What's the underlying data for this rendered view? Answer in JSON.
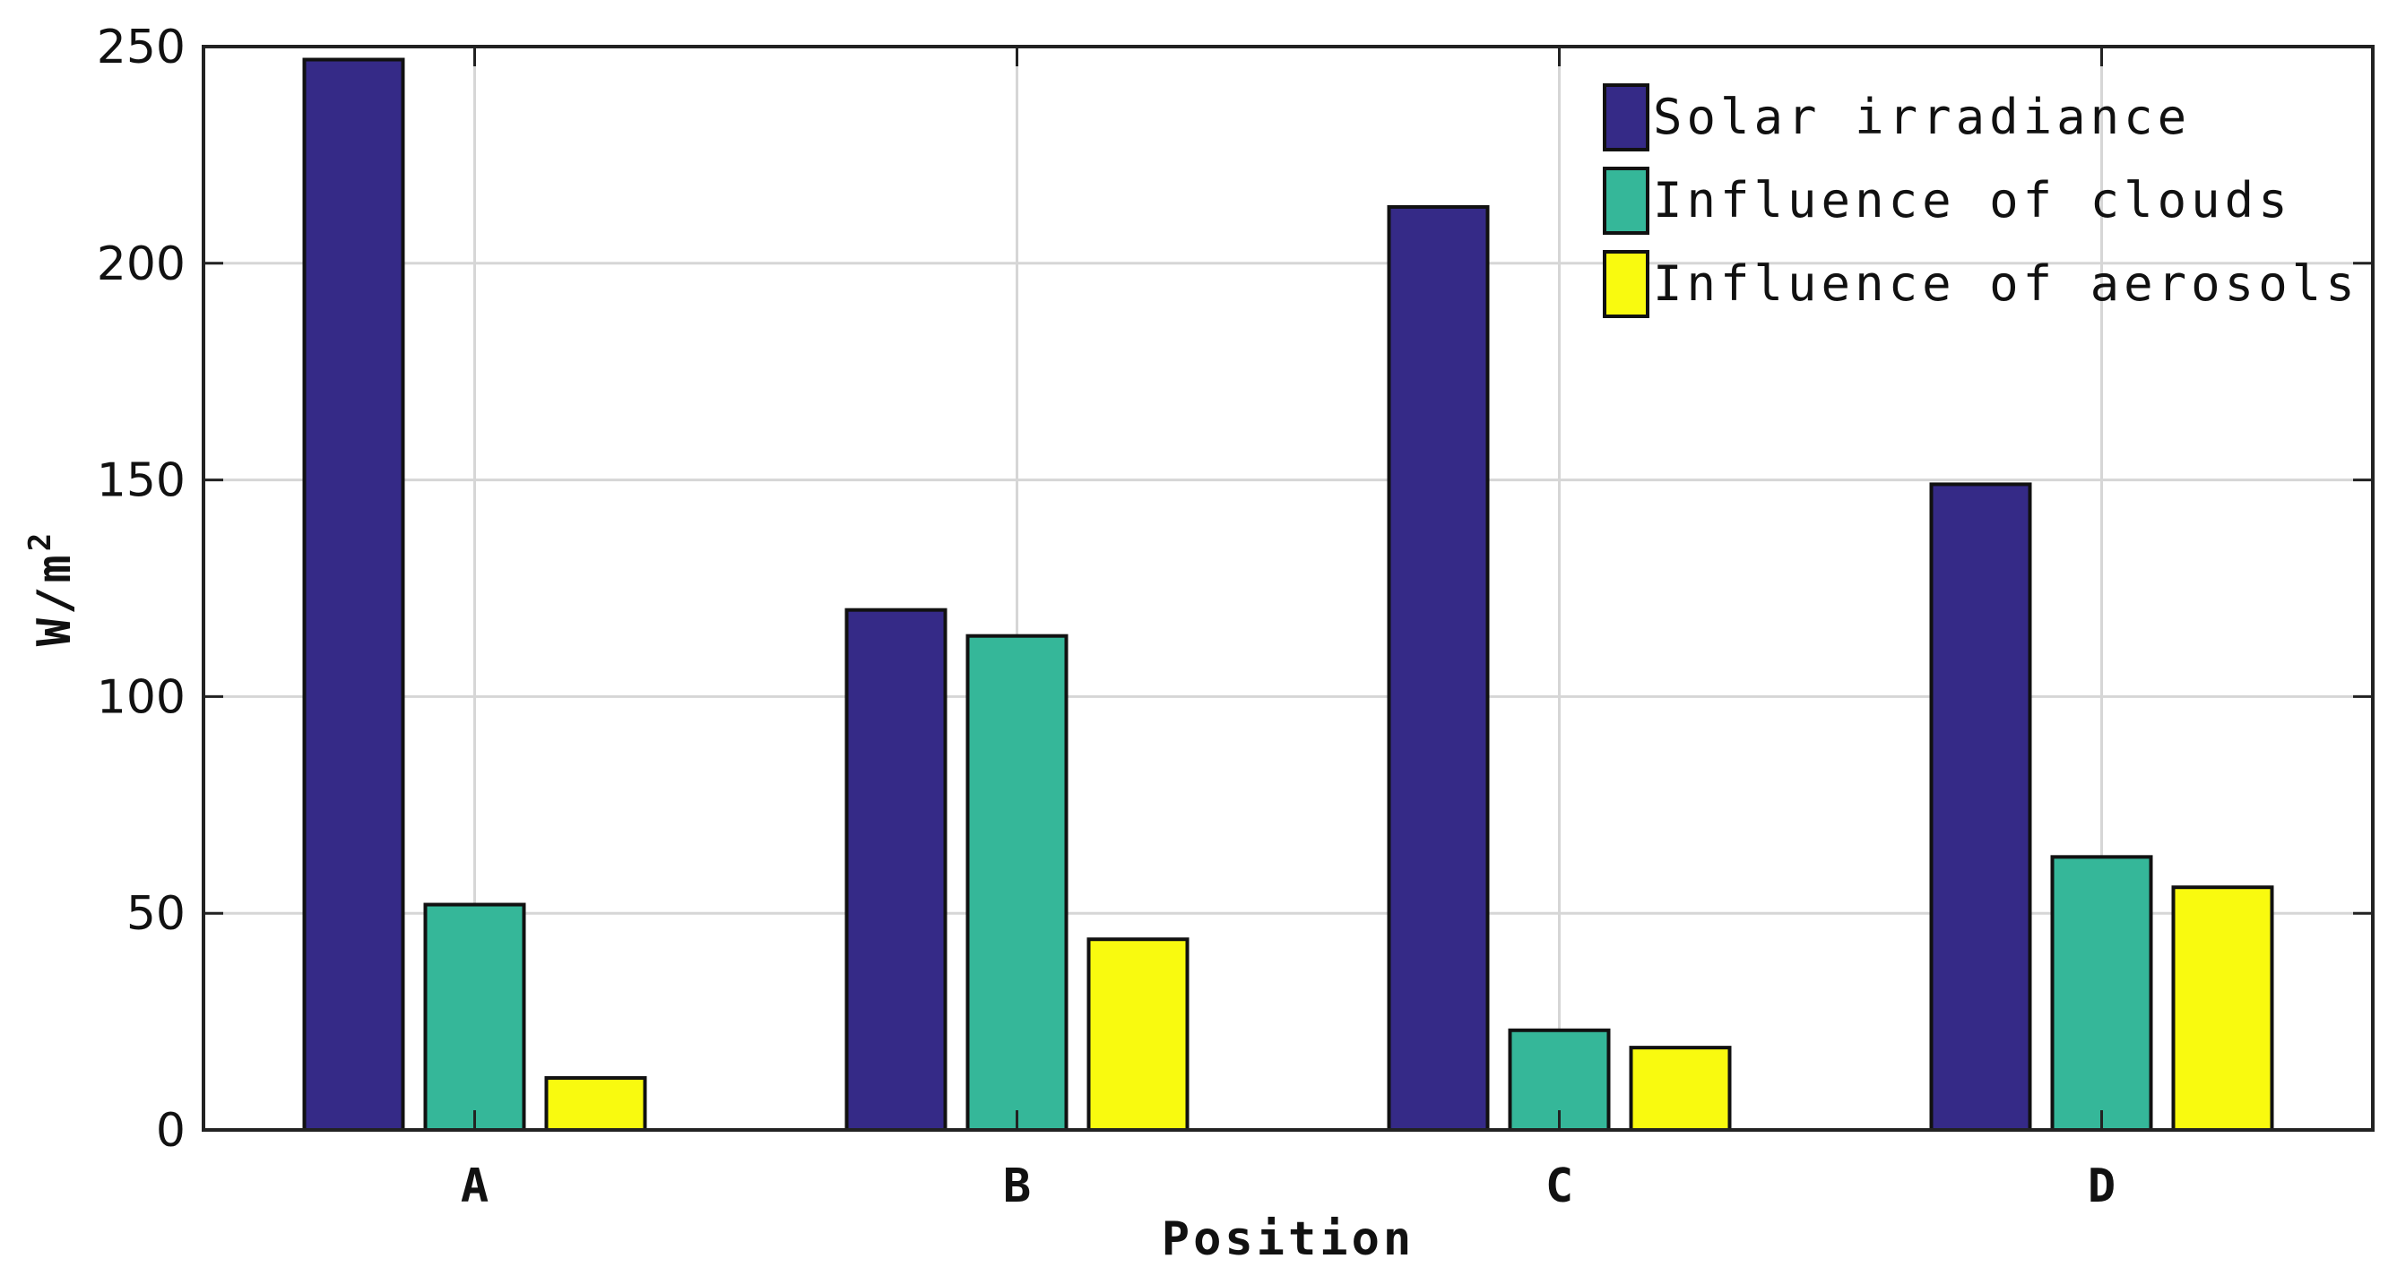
{
  "chart_data": {
    "type": "bar",
    "categories": [
      "A",
      "B",
      "C",
      "D"
    ],
    "series": [
      {
        "name": "Solar irradiance",
        "color": "#352a87",
        "values": [
          247,
          120,
          213,
          149
        ]
      },
      {
        "name": "Influence of clouds",
        "color": "#35b799",
        "values": [
          52,
          114,
          23,
          63
        ]
      },
      {
        "name": "Influence of aerosols",
        "color": "#f9fa0f",
        "values": [
          12,
          44,
          19,
          56
        ]
      }
    ],
    "xlabel": "Position",
    "ylabel": "W/m",
    "ylabel_superscript": "2",
    "ylim": [
      0,
      250
    ],
    "yticks": [
      "0",
      "50",
      "100",
      "150",
      "200",
      "250"
    ],
    "grid": true,
    "legend_position": "top-right"
  }
}
